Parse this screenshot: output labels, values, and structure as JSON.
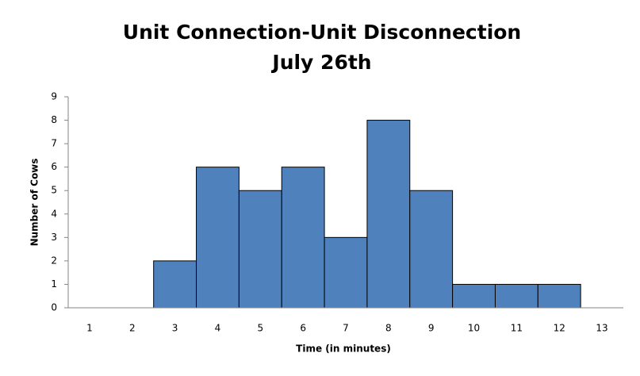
{
  "chart_data": {
    "type": "bar",
    "title": "Unit Connection-Unit Disconnection",
    "subtitle": "July 26th",
    "x_label": "Time (in minutes)",
    "y_label": "Number of Cows",
    "categories": [
      "1",
      "2",
      "3",
      "4",
      "5",
      "6",
      "7",
      "8",
      "9",
      "10",
      "11",
      "12",
      "13"
    ],
    "values": [
      0,
      0,
      2,
      6,
      5,
      6,
      3,
      8,
      5,
      1,
      1,
      1,
      0
    ],
    "color": "#4f81bd",
    "ylim": [
      0,
      9
    ],
    "yticks": [
      0,
      1,
      2,
      3,
      4,
      5,
      6,
      7,
      8,
      9
    ],
    "grid": false
  }
}
